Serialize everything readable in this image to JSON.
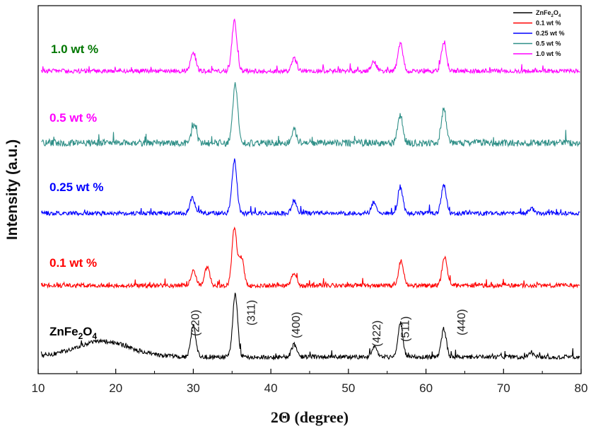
{
  "chart_data": {
    "type": "line",
    "title": "",
    "xlabel": "2Θ (degree)",
    "ylabel": "Intensity (a.u.)",
    "xlim": [
      10,
      80
    ],
    "xticks": [
      10,
      20,
      30,
      40,
      50,
      60,
      70,
      80
    ],
    "grid": false,
    "legend_position": "top-right",
    "series": [
      {
        "name": "ZnFe2O4",
        "label_main": "ZnFe",
        "label_sub1": "2",
        "label_mid": "O",
        "label_sub2": "4",
        "color": "#000000",
        "label_color": "#000000",
        "baseline": 0.0,
        "peaks": [
          [
            18.3,
            0.25
          ],
          [
            30.0,
            0.5
          ],
          [
            35.4,
            1.0
          ],
          [
            43.0,
            0.2
          ],
          [
            53.4,
            0.15
          ],
          [
            56.7,
            0.55
          ],
          [
            62.3,
            0.45
          ],
          [
            73.5,
            0.08
          ]
        ]
      },
      {
        "name": "0.1  wt %",
        "label": "0.1  wt %",
        "color": "#ff0000",
        "label_color": "#ff0000",
        "baseline": 1.0,
        "peaks": [
          [
            30.0,
            0.25
          ],
          [
            31.8,
            0.3
          ],
          [
            35.3,
            0.9
          ],
          [
            36.2,
            0.45
          ],
          [
            43.0,
            0.2
          ],
          [
            56.8,
            0.4
          ],
          [
            62.4,
            0.45
          ]
        ]
      },
      {
        "name": "0.25 wt %",
        "label": "0.25 wt %",
        "color": "#0000ff",
        "label_color": "#0000ff",
        "baseline": 2.0,
        "peaks": [
          [
            29.9,
            0.25
          ],
          [
            35.3,
            0.85
          ],
          [
            43.0,
            0.2
          ],
          [
            53.3,
            0.18
          ],
          [
            56.7,
            0.4
          ],
          [
            62.3,
            0.45
          ],
          [
            73.6,
            0.08
          ]
        ]
      },
      {
        "name": "0.5  wt %",
        "label": "0.5  wt %",
        "color": "#2f8f87",
        "label_color": "#ff00ff",
        "baseline": 3.0,
        "peaks": [
          [
            30.1,
            0.3
          ],
          [
            35.4,
            0.95
          ],
          [
            43.0,
            0.2
          ],
          [
            56.7,
            0.45
          ],
          [
            62.3,
            0.55
          ]
        ]
      },
      {
        "name": "1.0  wt %",
        "label": "1.0  wt %",
        "color": "#ff00ff",
        "label_color": "#007700",
        "baseline": 4.0,
        "peaks": [
          [
            30.0,
            0.3
          ],
          [
            35.3,
            0.8
          ],
          [
            43.0,
            0.2
          ],
          [
            53.3,
            0.15
          ],
          [
            56.7,
            0.45
          ],
          [
            62.3,
            0.45
          ]
        ]
      }
    ],
    "legend": [
      "ZnFe2O4",
      "0.1  wt %",
      "0.25 wt %",
      "0.5  wt %",
      "1.0  wt %"
    ],
    "legend_main": "ZnFe",
    "legend_sub1": "2",
    "legend_mid": "O",
    "legend_sub2": "4",
    "peak_annotations": [
      {
        "x": 30.0,
        "label": "(220)"
      },
      {
        "x": 35.4,
        "label": "(311)"
      },
      {
        "x": 43.0,
        "label": "(400)"
      },
      {
        "x": 53.4,
        "label": "(422)"
      },
      {
        "x": 56.7,
        "label": "(511)"
      },
      {
        "x": 62.3,
        "label": "(440)"
      }
    ]
  }
}
